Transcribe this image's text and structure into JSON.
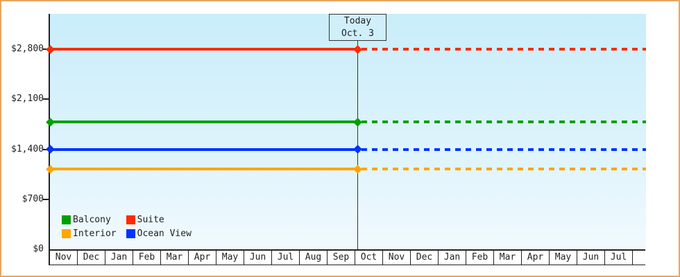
{
  "frame": {
    "border_color": "#eaa661",
    "background_color": "#ffffff",
    "plot_gradient_top": "#c9edfa",
    "plot_gradient_bottom": "#f1fafe"
  },
  "chart_data": {
    "type": "line",
    "title": "",
    "xlabel": "",
    "ylabel": "",
    "ylim": [
      0,
      3300
    ],
    "grid": false,
    "x_axis": {
      "categories": [
        "Nov",
        "Dec",
        "Jan",
        "Feb",
        "Mar",
        "Apr",
        "May",
        "Jun",
        "Jul",
        "Aug",
        "Sep",
        "Oct",
        "Nov",
        "Dec",
        "Jan",
        "Feb",
        "Mar",
        "Apr",
        "May",
        "Jun",
        "Jul"
      ]
    },
    "y_axis": {
      "tick_values": [
        0,
        700,
        1400,
        2100,
        2800
      ],
      "tick_labels": [
        "$0",
        "$700",
        "$1,400",
        "$2,100",
        "$2,800"
      ]
    },
    "series": [
      {
        "name": "Suite",
        "color": "#ff2b00",
        "value": 2800,
        "style": "solid-then-dashed-after-today"
      },
      {
        "name": "Balcony",
        "color": "#00a000",
        "value": 1780,
        "style": "solid-then-dashed-after-today"
      },
      {
        "name": "Ocean View",
        "color": "#0033ff",
        "value": 1400,
        "style": "solid-then-dashed-after-today"
      },
      {
        "name": "Interior",
        "color": "#ffa500",
        "value": 1120,
        "style": "solid-then-dashed-after-today"
      }
    ],
    "today_marker": {
      "label": "Today",
      "date": "Oct. 3",
      "line_color": "#333333",
      "box_fill": "#cfeffb"
    },
    "legend": {
      "position": "bottom-left-inside",
      "order": [
        "Balcony",
        "Suite",
        "Interior",
        "Ocean View"
      ]
    }
  }
}
